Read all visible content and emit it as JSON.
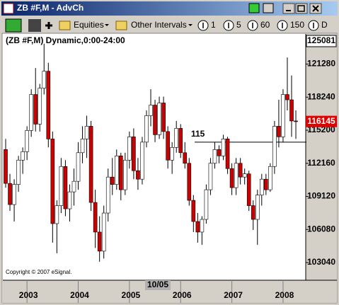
{
  "window": {
    "title": "ZB #F,M - AdvCh"
  },
  "toolbar": {
    "items": [
      "Equities",
      "Other Intervals",
      "1",
      "5",
      "60",
      "150",
      "D"
    ]
  },
  "chart_data": {
    "type": "candlestick",
    "title": "(ZB #F,M) Dynamic,0:00-24:00",
    "copyright": "Copyright © 2007 eSignal.",
    "categories": [
      null,
      null,
      null,
      null,
      null,
      "2003",
      null,
      null,
      null,
      null,
      null,
      null,
      null,
      null,
      null,
      null,
      null,
      "2004",
      null,
      null,
      null,
      null,
      null,
      null,
      null,
      null,
      null,
      null,
      null,
      "2005",
      null,
      null,
      null,
      null,
      null,
      null,
      null,
      null,
      null,
      null,
      null,
      "2006",
      null,
      null,
      null,
      null,
      null,
      null,
      null,
      null,
      null,
      null,
      null,
      "2007",
      null,
      null,
      null,
      null,
      null,
      null,
      null,
      null,
      null,
      null,
      null,
      "2008",
      null,
      null,
      null
    ],
    "open": [
      113.8,
      110.6,
      108.6,
      110.5,
      112.8,
      113.6,
      115.6,
      119.0,
      116.2,
      119.6,
      121.2,
      114.8,
      106.8,
      108.5,
      112.2,
      108.2,
      109.8,
      110.8,
      113.5,
      114.8,
      116.0,
      108.8,
      106.0,
      104.2,
      107.8,
      111.2,
      110.5,
      113.2,
      110.0,
      112.8,
      115.0,
      111.8,
      111.0,
      114.5,
      117.0,
      118.0,
      115.2,
      118.2,
      115.5,
      112.8,
      114.0,
      115.8,
      113.5,
      112.5,
      109.0,
      107.0,
      106.0,
      107.2,
      110.0,
      112.5,
      113.8,
      113.2,
      114.8,
      112.0,
      110.2,
      112.5,
      111.2,
      111.5,
      108.5,
      107.2,
      109.5,
      111.0,
      110.0,
      112.2,
      116.0,
      115.0,
      119.0,
      118.5,
      116.5
    ],
    "high": [
      114.8,
      111.5,
      111.0,
      113.2,
      114.0,
      116.0,
      119.5,
      121.5,
      120.0,
      123.8,
      122.0,
      115.5,
      109.0,
      113.0,
      112.8,
      110.5,
      112.0,
      114.5,
      116.0,
      117.0,
      116.5,
      110.0,
      107.5,
      108.5,
      112.0,
      113.0,
      113.8,
      113.5,
      113.5,
      115.5,
      115.8,
      113.0,
      115.0,
      117.5,
      119.5,
      118.5,
      118.8,
      118.8,
      116.0,
      114.5,
      116.5,
      116.2,
      114.5,
      113.0,
      109.5,
      107.8,
      107.5,
      110.5,
      113.0,
      114.5,
      114.2,
      115.2,
      115.0,
      112.5,
      113.0,
      113.0,
      112.0,
      111.8,
      109.0,
      110.0,
      111.5,
      111.5,
      112.5,
      116.5,
      118.5,
      119.5,
      122.5,
      120.8,
      117.5
    ],
    "low": [
      110.2,
      108.0,
      107.0,
      109.8,
      111.5,
      112.8,
      115.0,
      115.5,
      115.5,
      119.0,
      114.0,
      105.0,
      104.0,
      107.8,
      107.5,
      107.0,
      108.5,
      110.0,
      112.5,
      113.0,
      108.0,
      104.5,
      103.2,
      103.5,
      107.0,
      109.5,
      110.0,
      109.0,
      109.5,
      112.0,
      111.0,
      110.0,
      110.5,
      114.0,
      116.0,
      114.5,
      114.8,
      114.8,
      112.0,
      111.5,
      113.5,
      113.0,
      112.0,
      108.5,
      106.0,
      105.0,
      104.8,
      106.8,
      109.5,
      112.0,
      112.5,
      112.8,
      111.5,
      109.5,
      109.5,
      110.5,
      110.5,
      108.0,
      106.2,
      104.8,
      108.5,
      109.5,
      109.8,
      111.5,
      114.0,
      114.5,
      117.5,
      115.0,
      114.8
    ],
    "close": [
      110.6,
      108.6,
      110.5,
      112.8,
      113.6,
      115.6,
      119.0,
      116.2,
      119.6,
      121.2,
      114.8,
      106.8,
      108.5,
      112.2,
      108.2,
      109.8,
      110.8,
      113.5,
      114.8,
      116.0,
      108.8,
      106.0,
      104.2,
      107.8,
      111.2,
      110.5,
      113.2,
      110.0,
      112.8,
      115.0,
      111.8,
      111.0,
      114.5,
      117.0,
      118.0,
      115.2,
      118.2,
      115.5,
      112.8,
      114.0,
      115.8,
      113.5,
      112.5,
      109.0,
      107.0,
      106.0,
      107.2,
      110.0,
      112.5,
      113.8,
      113.2,
      114.8,
      112.0,
      110.2,
      112.5,
      111.2,
      111.5,
      108.5,
      107.2,
      109.5,
      111.0,
      110.0,
      112.2,
      116.0,
      115.0,
      119.0,
      118.5,
      116.5,
      116.45
    ],
    "up_color": "#ffffff",
    "down_color": "#cc0000",
    "ylim": [
      101.45,
      124.72
    ],
    "yticks": [
      {
        "value": 103.125,
        "label": "103040"
      },
      {
        "value": 106.25,
        "label": "106080"
      },
      {
        "value": 109.375,
        "label": "109120"
      },
      {
        "value": 112.5,
        "label": "112160"
      },
      {
        "value": 115.625,
        "label": "115200"
      },
      {
        "value": 118.75,
        "label": "118240"
      },
      {
        "value": 121.875,
        "label": "121280"
      }
    ],
    "header_price": "125081",
    "last_price": {
      "value": 116.453,
      "label": "116145"
    },
    "annotation": {
      "value": 114.5,
      "label": "115"
    },
    "cursor_label": "10/05"
  }
}
